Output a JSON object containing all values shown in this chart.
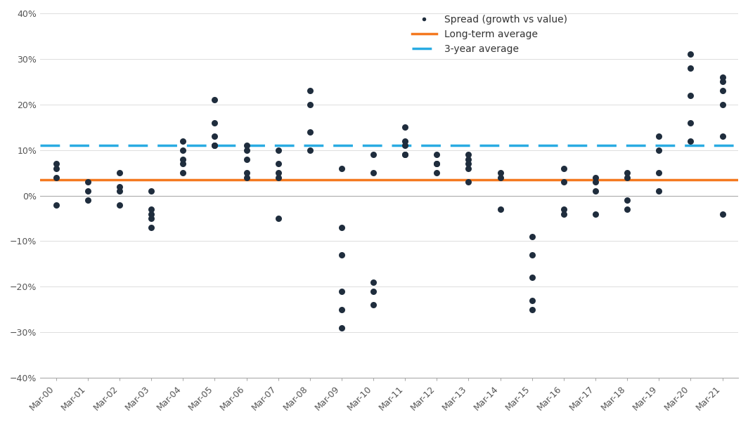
{
  "long_term_avg": 0.035,
  "three_year_avg": 0.11,
  "long_term_color": "#F47920",
  "three_year_color": "#29ABE2",
  "scatter_color": "#1F2D3D",
  "background_color": "#FFFFFF",
  "ylim": [
    -0.4,
    0.4
  ],
  "yticks": [
    -0.4,
    -0.3,
    -0.2,
    -0.1,
    0.0,
    0.1,
    0.2,
    0.3,
    0.4
  ],
  "xtick_labels": [
    "Mar-00",
    "Mar-01",
    "Mar-02",
    "Mar-03",
    "Mar-04",
    "Mar-05",
    "Mar-06",
    "Mar-07",
    "Mar-08",
    "Mar-09",
    "Mar-10",
    "Mar-11",
    "Mar-12",
    "Mar-13",
    "Mar-14",
    "Mar-15",
    "Mar-16",
    "Mar-17",
    "Mar-18",
    "Mar-19",
    "Mar-20",
    "Mar-21"
  ],
  "scatter_data": [
    [
      0,
      0.06
    ],
    [
      0,
      0.04
    ],
    [
      0,
      -0.02
    ],
    [
      0,
      0.07
    ],
    [
      1,
      0.03
    ],
    [
      1,
      -0.01
    ],
    [
      1,
      0.01
    ],
    [
      2,
      0.05
    ],
    [
      2,
      0.01
    ],
    [
      2,
      -0.02
    ],
    [
      2,
      0.02
    ],
    [
      3,
      -0.03
    ],
    [
      3,
      -0.05
    ],
    [
      3,
      -0.07
    ],
    [
      3,
      -0.04
    ],
    [
      3,
      0.01
    ],
    [
      4,
      0.05
    ],
    [
      4,
      0.07
    ],
    [
      4,
      0.1
    ],
    [
      4,
      0.12
    ],
    [
      4,
      0.08
    ],
    [
      5,
      0.21
    ],
    [
      5,
      0.16
    ],
    [
      5,
      0.13
    ],
    [
      5,
      0.11
    ],
    [
      5,
      0.11
    ],
    [
      6,
      0.04
    ],
    [
      6,
      0.05
    ],
    [
      6,
      0.11
    ],
    [
      6,
      0.1
    ],
    [
      6,
      0.08
    ],
    [
      7,
      -0.05
    ],
    [
      7,
      0.04
    ],
    [
      7,
      0.05
    ],
    [
      7,
      0.1
    ],
    [
      7,
      0.07
    ],
    [
      8,
      0.1
    ],
    [
      8,
      0.14
    ],
    [
      8,
      0.2
    ],
    [
      8,
      0.23
    ],
    [
      9,
      0.06
    ],
    [
      9,
      -0.07
    ],
    [
      9,
      -0.13
    ],
    [
      9,
      -0.21
    ],
    [
      9,
      -0.25
    ],
    [
      9,
      -0.29
    ],
    [
      10,
      -0.24
    ],
    [
      10,
      -0.21
    ],
    [
      10,
      -0.19
    ],
    [
      10,
      0.05
    ],
    [
      10,
      0.09
    ],
    [
      11,
      0.15
    ],
    [
      11,
      0.12
    ],
    [
      11,
      0.09
    ],
    [
      11,
      0.11
    ],
    [
      11,
      0.09
    ],
    [
      12,
      0.07
    ],
    [
      12,
      0.09
    ],
    [
      12,
      0.07
    ],
    [
      12,
      0.05
    ],
    [
      13,
      0.06
    ],
    [
      13,
      0.08
    ],
    [
      13,
      0.09
    ],
    [
      13,
      0.07
    ],
    [
      13,
      0.03
    ],
    [
      14,
      -0.03
    ],
    [
      14,
      0.04
    ],
    [
      14,
      0.05
    ],
    [
      15,
      -0.09
    ],
    [
      15,
      -0.13
    ],
    [
      15,
      -0.18
    ],
    [
      15,
      -0.23
    ],
    [
      15,
      -0.25
    ],
    [
      16,
      -0.04
    ],
    [
      16,
      -0.03
    ],
    [
      16,
      0.03
    ],
    [
      16,
      0.06
    ],
    [
      17,
      0.01
    ],
    [
      17,
      -0.04
    ],
    [
      17,
      0.03
    ],
    [
      17,
      0.04
    ],
    [
      18,
      -0.03
    ],
    [
      18,
      -0.01
    ],
    [
      18,
      0.04
    ],
    [
      18,
      0.05
    ],
    [
      19,
      0.01
    ],
    [
      19,
      0.05
    ],
    [
      19,
      0.1
    ],
    [
      19,
      0.13
    ],
    [
      20,
      0.12
    ],
    [
      20,
      0.16
    ],
    [
      20,
      0.22
    ],
    [
      20,
      0.28
    ],
    [
      20,
      0.31
    ],
    [
      21,
      0.26
    ],
    [
      21,
      0.25
    ],
    [
      21,
      0.23
    ],
    [
      21,
      0.2
    ],
    [
      21,
      0.13
    ],
    [
      21,
      -0.04
    ]
  ]
}
